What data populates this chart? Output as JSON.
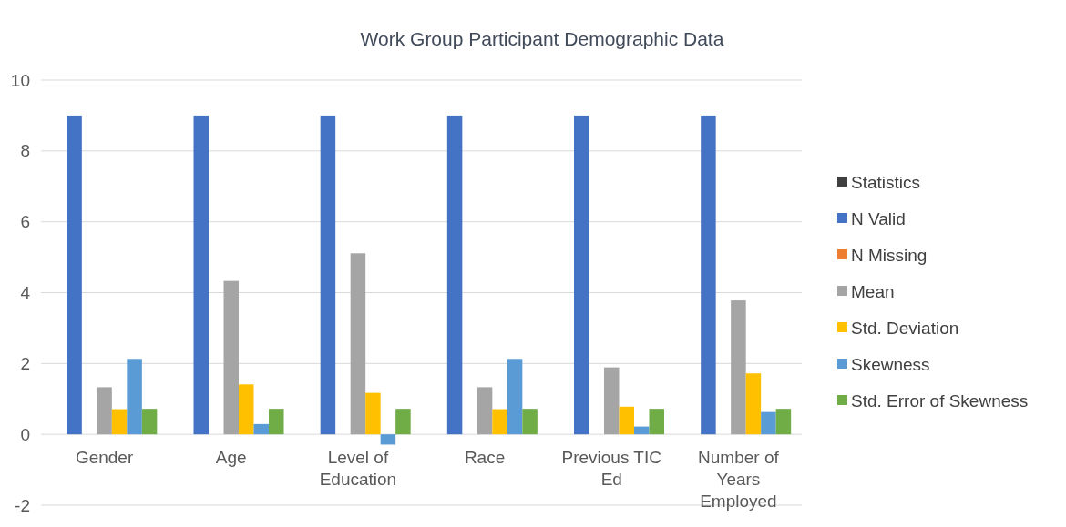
{
  "chart_data": {
    "type": "bar",
    "title": "Work Group Participant Demographic Data",
    "categories": [
      "Gender",
      "Age",
      "Level of Education",
      "Race",
      "Previous TIC Ed",
      "Number of Years Employed"
    ],
    "series": [
      {
        "name": "Statistics",
        "color": "#404040",
        "values": [
          null,
          null,
          null,
          null,
          null,
          null
        ]
      },
      {
        "name": "N Valid",
        "color": "#4472c4",
        "values": [
          9,
          9,
          9,
          9,
          9,
          9
        ]
      },
      {
        "name": "N Missing",
        "color": "#ed7d31",
        "values": [
          0,
          0,
          0,
          0,
          0,
          0
        ]
      },
      {
        "name": "Mean",
        "color": "#a5a5a5",
        "values": [
          1.33,
          4.33,
          5.11,
          1.33,
          1.89,
          3.78
        ]
      },
      {
        "name": "Std. Deviation",
        "color": "#ffc000",
        "values": [
          0.71,
          1.41,
          1.17,
          0.71,
          0.78,
          1.72
        ]
      },
      {
        "name": "Skewness",
        "color": "#5b9bd5",
        "values": [
          2.13,
          0.29,
          -0.29,
          2.13,
          0.22,
          0.63
        ]
      },
      {
        "name": "Std. Error of Skewness",
        "color": "#70ad47",
        "values": [
          0.72,
          0.72,
          0.72,
          0.72,
          0.72,
          0.72
        ]
      }
    ],
    "ylim": [
      -2,
      10
    ],
    "yticks": [
      -2,
      0,
      2,
      4,
      6,
      8,
      10
    ],
    "grid": "y",
    "legend": "right"
  }
}
